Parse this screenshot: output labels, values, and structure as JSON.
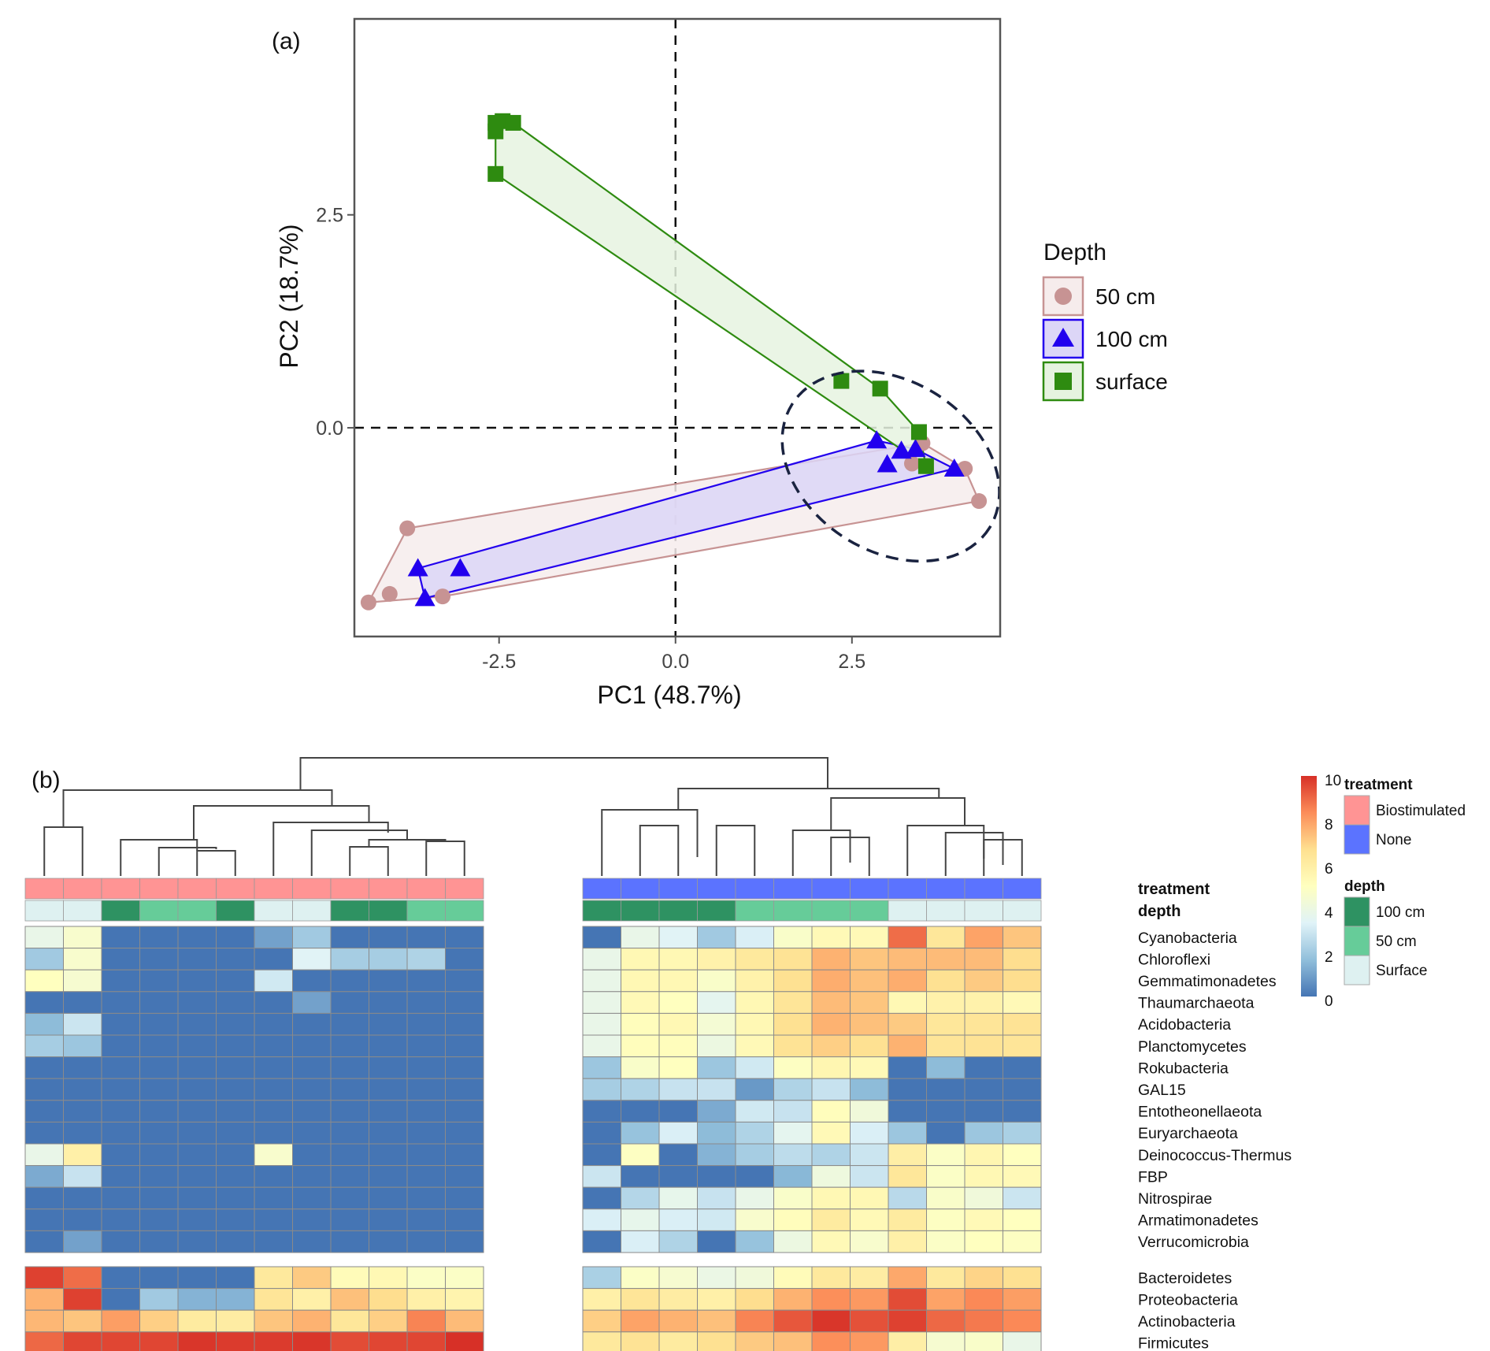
{
  "chart_data": [
    {
      "type": "scatter",
      "panel_label": "(a)",
      "xlabel": "PC1 (48.7%)",
      "ylabel": "PC2 (18.7%)",
      "xlim": [
        -4.55,
        4.6
      ],
      "ylim": [
        -2.45,
        4.8
      ],
      "xticks": [
        -2.5,
        0.0,
        2.5
      ],
      "xtick_labels": [
        "-2.5",
        "0.0",
        "2.5"
      ],
      "yticks": [
        0.0,
        2.5
      ],
      "ytick_labels": [
        "0.0",
        "2.5"
      ],
      "reference_lines": {
        "x": 0,
        "y": 0,
        "style": "dashed"
      },
      "grid": false,
      "legend": {
        "title": "Depth",
        "position": "right"
      },
      "series": [
        {
          "name": "50 cm",
          "marker": "circle",
          "color": "#c79393",
          "fill": "#f6ecec",
          "points": [
            [
              -4.35,
              -2.05
            ],
            [
              -4.05,
              -1.95
            ],
            [
              -3.8,
              -1.18
            ],
            [
              -3.3,
              -1.98
            ],
            [
              3.5,
              -0.18
            ],
            [
              3.35,
              -0.42
            ],
            [
              4.1,
              -0.48
            ],
            [
              4.3,
              -0.86
            ]
          ]
        },
        {
          "name": "100 cm",
          "marker": "triangle",
          "color": "#2200ee",
          "fill": "#dcd6f7",
          "points": [
            [
              -3.65,
              -1.65
            ],
            [
              -3.05,
              -1.65
            ],
            [
              -3.55,
              -2.0
            ],
            [
              2.85,
              -0.15
            ],
            [
              3.2,
              -0.27
            ],
            [
              3.0,
              -0.43
            ],
            [
              3.95,
              -0.48
            ],
            [
              3.4,
              -0.25
            ]
          ]
        },
        {
          "name": "surface",
          "marker": "square",
          "color": "#2e8b10",
          "fill": "#e6f3e0",
          "points": [
            [
              -2.55,
              3.58
            ],
            [
              -2.45,
              3.6
            ],
            [
              -2.3,
              3.58
            ],
            [
              -2.55,
              3.48
            ],
            [
              -2.55,
              2.98
            ],
            [
              2.35,
              0.55
            ],
            [
              2.9,
              0.46
            ],
            [
              3.45,
              -0.05
            ],
            [
              3.55,
              -0.45
            ]
          ]
        }
      ],
      "annotation": {
        "type": "dashed-ellipse",
        "center": [
          3.05,
          -0.45
        ],
        "radii": [
          1.65,
          1.0
        ]
      }
    },
    {
      "type": "heatmap",
      "panel_label": "(b)",
      "colorscale": {
        "min": 0,
        "max": 10,
        "ticks": [
          0,
          2,
          4,
          6,
          8,
          10
        ],
        "stops": [
          "#4575b4",
          "#91bfdb",
          "#e0f3f8",
          "#ffffbf",
          "#fee090",
          "#fc8d59",
          "#d73027"
        ]
      },
      "column_groups": [
        {
          "treatment": "Biostimulated",
          "depth": [
            "Surface",
            "Surface",
            "100 cm",
            "50 cm",
            "50 cm",
            "100 cm",
            "Surface",
            "Surface",
            "100 cm",
            "100 cm",
            "50 cm",
            "50 cm"
          ]
        },
        {
          "treatment": "None",
          "depth": [
            "100 cm",
            "100 cm",
            "100 cm",
            "100 cm",
            "50 cm",
            "50 cm",
            "50 cm",
            "50 cm",
            "Surface",
            "Surface",
            "Surface",
            "Surface"
          ]
        }
      ],
      "annotation_rows": [
        "treatment",
        "depth"
      ],
      "row_groups": [
        {
          "rows": [
            "Cyanobacteria",
            "Chloroflexi",
            "Gemmatimonadetes",
            "Thaumarchaeota",
            "Acidobacteria",
            "Planctomycetes",
            "Rokubacteria",
            "GAL15",
            "Entotheonellaeota",
            "Euryarchaeota",
            "Deinococcus-Thermus",
            "FBP",
            "Nitrospirae",
            "Armatimonadetes",
            "Verrucomicrobia"
          ],
          "values": [
            [
              3.8,
              4.6,
              0,
              0,
              0,
              0,
              1,
              2,
              0,
              0,
              0,
              0,
              0,
              3.8,
              3.4,
              2,
              3.2,
              4.7,
              5.3,
              5.3,
              8.9,
              6.3,
              7.9,
              7.2
            ],
            [
              2,
              4.6,
              0,
              0,
              0,
              0,
              0,
              3.4,
              2.1,
              2.1,
              2.3,
              0,
              3.8,
              5.4,
              5.4,
              5.7,
              6.2,
              6.5,
              7.6,
              7.2,
              7.4,
              7.4,
              7.4,
              6.7
            ],
            [
              5,
              4.5,
              0,
              0,
              0,
              0,
              3,
              0,
              0,
              0,
              0,
              0,
              3.8,
              5.4,
              5.4,
              4.7,
              5.7,
              6.6,
              7.7,
              7.3,
              7.7,
              6.6,
              7.1,
              6.7
            ],
            [
              0,
              0,
              0,
              0,
              0,
              0,
              0,
              1,
              0,
              0,
              0,
              0,
              3.8,
              5.3,
              5,
              3.6,
              5.4,
              6.4,
              7.4,
              7.2,
              5.4,
              5.7,
              5.7,
              5.3
            ],
            [
              1.6,
              2.9,
              0,
              0,
              0,
              0,
              0,
              0,
              0,
              0,
              0,
              0,
              3.8,
              5.1,
              5.4,
              4.4,
              5.4,
              6.6,
              7.6,
              7.3,
              7.1,
              6.3,
              6.4,
              6.5
            ],
            [
              2.1,
              1.9,
              0,
              0,
              0,
              0,
              0,
              0,
              0,
              0,
              0,
              0,
              3.8,
              5.1,
              5.1,
              4,
              5.3,
              6.5,
              7,
              6.6,
              7.6,
              6.4,
              6.5,
              6.4
            ],
            [
              0,
              0,
              0,
              0,
              0,
              0,
              0,
              0,
              0,
              0,
              0,
              0,
              1.9,
              4.7,
              5,
              1.9,
              3,
              4.9,
              5.5,
              5.3,
              0,
              1.6,
              0,
              0
            ],
            [
              0,
              0,
              0,
              0,
              0,
              0,
              0,
              0,
              0,
              0,
              0,
              0,
              2.1,
              2.3,
              2.8,
              2.8,
              0.8,
              2.3,
              2.8,
              1.6,
              0,
              0,
              0,
              0
            ],
            [
              0,
              0,
              0,
              0,
              0,
              0,
              0,
              0,
              0,
              0,
              0,
              0,
              0,
              0,
              0,
              1.2,
              3,
              2.8,
              5.1,
              4.2,
              0,
              0,
              0,
              0
            ],
            [
              0,
              0,
              0,
              0,
              0,
              0,
              0,
              0,
              0,
              0,
              0,
              0,
              0,
              1.8,
              3.2,
              1.6,
              2.3,
              3.6,
              5.3,
              3.2,
              1.9,
              0,
              1.9,
              2.2
            ],
            [
              3.8,
              5.8,
              0,
              0,
              0,
              0,
              4.6,
              0,
              0,
              0,
              0,
              0,
              0,
              4.9,
              0,
              1.4,
              2.1,
              2.6,
              2.3,
              2.9,
              5.9,
              4.8,
              5.5,
              5
            ],
            [
              1.2,
              2.8,
              0,
              0,
              0,
              0,
              0,
              0,
              0,
              0,
              0,
              0,
              2.9,
              0,
              0,
              0,
              0,
              1.5,
              4.1,
              2.9,
              6.3,
              4.8,
              5.4,
              5.3
            ],
            [
              0,
              0,
              0,
              0,
              0,
              0,
              0,
              0,
              0,
              0,
              0,
              0,
              0,
              2.4,
              3.7,
              2.8,
              3.8,
              4.7,
              5.4,
              5.4,
              2.5,
              4.7,
              4.2,
              2.9
            ],
            [
              0,
              0,
              0,
              0,
              0,
              0,
              0,
              0,
              0,
              0,
              0,
              0,
              3.2,
              3.7,
              3.2,
              3,
              4.6,
              5.1,
              6.1,
              5.3,
              6.1,
              4.9,
              5.3,
              5
            ],
            [
              0,
              1,
              0,
              0,
              0,
              0,
              0,
              0,
              0,
              0,
              0,
              0,
              0,
              3.2,
              2.3,
              0,
              1.8,
              4,
              5.3,
              4.6,
              5.8,
              4.8,
              5,
              4.9
            ]
          ]
        },
        {
          "rows": [
            "Bacteroidetes",
            "Proteobacteria",
            "Actinobacteria",
            "Firmicutes"
          ],
          "values": [
            [
              9.7,
              8.9,
              0,
              0,
              0,
              0,
              6.2,
              7.1,
              5.2,
              5.4,
              4.8,
              4.8,
              2.2,
              4.8,
              4.5,
              3.9,
              4.2,
              5.2,
              6.2,
              6,
              7.8,
              6.2,
              6.9,
              6.6
            ],
            [
              7.6,
              9.7,
              0,
              2,
              1.4,
              1.4,
              6.4,
              5.8,
              7.3,
              6.7,
              5.8,
              5.6,
              5.8,
              6.4,
              6,
              5.8,
              6.7,
              7.6,
              8.3,
              8.1,
              9.5,
              7.9,
              8.4,
              8
            ],
            [
              7.5,
              7.2,
              8,
              7,
              6.1,
              6,
              7.2,
              7.6,
              6.3,
              7,
              8.5,
              7.4,
              7,
              7.9,
              7.6,
              7.3,
              8.5,
              9.3,
              9.9,
              9.4,
              9.7,
              9,
              8.7,
              8.4
            ],
            [
              9,
              9.6,
              9.6,
              9.6,
              9.9,
              9.8,
              9.8,
              9.9,
              9.5,
              9.6,
              9.6,
              10,
              6.2,
              6.5,
              6.1,
              6.6,
              7.1,
              7.3,
              8.3,
              8.1,
              5.9,
              4.5,
              4.7,
              3.8
            ]
          ]
        }
      ],
      "legend": {
        "treatment": {
          "title": "treatment",
          "items": [
            {
              "label": "Biostimulated",
              "color": "#ff9494"
            },
            {
              "label": "None",
              "color": "#5b73ff"
            }
          ]
        },
        "depth": {
          "title": "depth",
          "items": [
            {
              "label": "100 cm",
              "color": "#2e9262"
            },
            {
              "label": "50 cm",
              "color": "#66cc99"
            },
            {
              "label": "Surface",
              "color": "#def1f1"
            }
          ]
        }
      },
      "colorbar_tick_labels": [
        "0",
        "2",
        "4",
        "6",
        "8",
        "10"
      ]
    }
  ]
}
